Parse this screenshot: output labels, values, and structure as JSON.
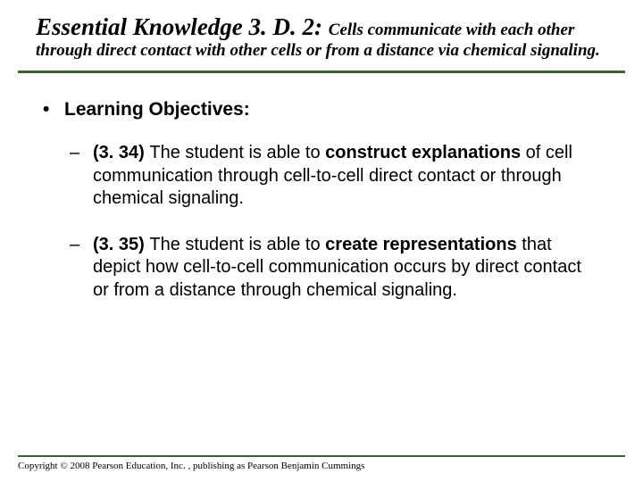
{
  "colors": {
    "hr": "#3f6131",
    "text": "#000000",
    "background": "#ffffff"
  },
  "title": {
    "main": "Essential Knowledge 3. D. 2: ",
    "desc_inline": "Cells communicate with each other",
    "desc_cont": "through direct contact with other cells or from a distance via chemical signaling.",
    "main_fontsize": 27,
    "desc_fontsize": 19,
    "font_family": "Times New Roman",
    "italic": true,
    "bold": true
  },
  "content": {
    "heading": "Learning Objectives:",
    "heading_bold": true,
    "heading_fontsize": 21,
    "items": [
      {
        "code": "(3. 34) ",
        "before_bold": "The student is able to ",
        "bold": "construct explanations",
        "after_bold": " of cell communication through cell-to-cell direct contact or through chemical signaling."
      },
      {
        "code": "(3. 35) ",
        "before_bold": "The student is able to ",
        "bold": "create representations",
        "after_bold": " that depict how cell-to-cell communication occurs by direct contact or from a distance through chemical signaling."
      }
    ],
    "item_fontsize": 20
  },
  "footer": {
    "text": "Copyright © 2008 Pearson Education, Inc. , publishing as Pearson Benjamin Cummings",
    "fontsize": 11,
    "line_color": "#3f6131"
  }
}
